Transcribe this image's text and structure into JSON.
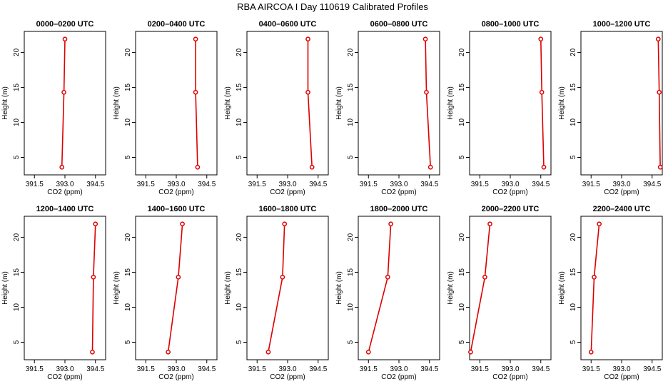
{
  "title": "RBA AIRCOA I  Day 110619  Calibrated Profiles",
  "chart_data": [
    {
      "type": "line",
      "title": "0000–0200 UTC",
      "xlabel": "CO2 (ppm)",
      "ylabel": "Height (m)",
      "xlim": [
        391.0,
        395.0
      ],
      "ylim": [
        2.5,
        23
      ],
      "xticks": [
        "391.5",
        "393.0",
        "394.5"
      ],
      "yticks": [
        "5",
        "10",
        "15",
        "20"
      ],
      "grid": false,
      "points": [
        {
          "x": 392.85,
          "y": 3.6
        },
        {
          "x": 392.95,
          "y": 14.3
        },
        {
          "x": 393.0,
          "y": 21.9
        }
      ]
    },
    {
      "type": "line",
      "title": "0200–0400 UTC",
      "xlabel": "CO2 (ppm)",
      "ylabel": "Height (m)",
      "xlim": [
        391.0,
        395.0
      ],
      "ylim": [
        2.5,
        23
      ],
      "xticks": [
        "391.5",
        "393.0",
        "394.5"
      ],
      "yticks": [
        "5",
        "10",
        "15",
        "20"
      ],
      "grid": false,
      "points": [
        {
          "x": 394.05,
          "y": 3.6
        },
        {
          "x": 393.95,
          "y": 14.3
        },
        {
          "x": 393.95,
          "y": 21.9
        }
      ]
    },
    {
      "type": "line",
      "title": "0400–0600 UTC",
      "xlabel": "CO2 (ppm)",
      "ylabel": "Height (m)",
      "xlim": [
        391.0,
        395.0
      ],
      "ylim": [
        2.5,
        23
      ],
      "xticks": [
        "391.5",
        "393.0",
        "394.5"
      ],
      "yticks": [
        "5",
        "10",
        "15",
        "20"
      ],
      "grid": false,
      "points": [
        {
          "x": 394.2,
          "y": 3.6
        },
        {
          "x": 394.0,
          "y": 14.3
        },
        {
          "x": 394.0,
          "y": 21.9
        }
      ]
    },
    {
      "type": "line",
      "title": "0600–0800 UTC",
      "xlabel": "CO2 (ppm)",
      "ylabel": "Height (m)",
      "xlim": [
        391.0,
        395.0
      ],
      "ylim": [
        2.5,
        23
      ],
      "xticks": [
        "391.5",
        "393.0",
        "394.5"
      ],
      "yticks": [
        "5",
        "10",
        "15",
        "20"
      ],
      "grid": false,
      "points": [
        {
          "x": 394.55,
          "y": 3.6
        },
        {
          "x": 394.35,
          "y": 14.3
        },
        {
          "x": 394.3,
          "y": 21.9
        }
      ]
    },
    {
      "type": "line",
      "title": "0800–1000 UTC",
      "xlabel": "CO2 (ppm)",
      "ylabel": "Height (m)",
      "xlim": [
        391.0,
        395.0
      ],
      "ylim": [
        2.5,
        23
      ],
      "xticks": [
        "391.5",
        "393.0",
        "394.5"
      ],
      "yticks": [
        "5",
        "10",
        "15",
        "20"
      ],
      "grid": false,
      "points": [
        {
          "x": 394.65,
          "y": 3.6
        },
        {
          "x": 394.55,
          "y": 14.3
        },
        {
          "x": 394.5,
          "y": 21.9
        }
      ]
    },
    {
      "type": "line",
      "title": "1000–1200 UTC",
      "xlabel": "CO2 (ppm)",
      "ylabel": "Height (m)",
      "xlim": [
        391.0,
        395.0
      ],
      "ylim": [
        2.5,
        23
      ],
      "xticks": [
        "391.5",
        "393.0",
        "394.5"
      ],
      "yticks": [
        "5",
        "10",
        "15",
        "20"
      ],
      "grid": false,
      "points": [
        {
          "x": 394.9,
          "y": 3.6
        },
        {
          "x": 394.85,
          "y": 14.3
        },
        {
          "x": 394.8,
          "y": 21.9
        }
      ]
    },
    {
      "type": "line",
      "title": "1200–1400 UTC",
      "xlabel": "CO2 (ppm)",
      "ylabel": "Height (m)",
      "xlim": [
        391.0,
        395.0
      ],
      "ylim": [
        2.5,
        23
      ],
      "xticks": [
        "391.5",
        "393.0",
        "394.5"
      ],
      "yticks": [
        "5",
        "10",
        "15",
        "20"
      ],
      "grid": false,
      "points": [
        {
          "x": 394.35,
          "y": 3.6
        },
        {
          "x": 394.4,
          "y": 14.3
        },
        {
          "x": 394.5,
          "y": 21.9
        }
      ]
    },
    {
      "type": "line",
      "title": "1400–1600 UTC",
      "xlabel": "CO2 (ppm)",
      "ylabel": "Height (m)",
      "xlim": [
        391.0,
        395.0
      ],
      "ylim": [
        2.5,
        23
      ],
      "xticks": [
        "391.5",
        "393.0",
        "394.5"
      ],
      "yticks": [
        "5",
        "10",
        "15",
        "20"
      ],
      "grid": false,
      "points": [
        {
          "x": 392.6,
          "y": 3.6
        },
        {
          "x": 393.1,
          "y": 14.3
        },
        {
          "x": 393.3,
          "y": 21.9
        }
      ]
    },
    {
      "type": "line",
      "title": "1600–1800 UTC",
      "xlabel": "CO2 (ppm)",
      "ylabel": "Height (m)",
      "xlim": [
        391.0,
        395.0
      ],
      "ylim": [
        2.5,
        23
      ],
      "xticks": [
        "391.5",
        "393.0",
        "394.5"
      ],
      "yticks": [
        "5",
        "10",
        "15",
        "20"
      ],
      "grid": false,
      "points": [
        {
          "x": 392.05,
          "y": 3.6
        },
        {
          "x": 392.75,
          "y": 14.3
        },
        {
          "x": 392.85,
          "y": 21.9
        }
      ]
    },
    {
      "type": "line",
      "title": "1800–2000 UTC",
      "xlabel": "CO2 (ppm)",
      "ylabel": "Height (m)",
      "xlim": [
        391.0,
        395.0
      ],
      "ylim": [
        2.5,
        23
      ],
      "xticks": [
        "391.5",
        "393.0",
        "394.5"
      ],
      "yticks": [
        "5",
        "10",
        "15",
        "20"
      ],
      "grid": false,
      "points": [
        {
          "x": 391.5,
          "y": 3.6
        },
        {
          "x": 392.45,
          "y": 14.3
        },
        {
          "x": 392.6,
          "y": 21.9
        }
      ]
    },
    {
      "type": "line",
      "title": "2000–2200 UTC",
      "xlabel": "CO2 (ppm)",
      "ylabel": "Height (m)",
      "xlim": [
        391.0,
        395.0
      ],
      "ylim": [
        2.5,
        23
      ],
      "xticks": [
        "391.5",
        "393.0",
        "394.5"
      ],
      "yticks": [
        "5",
        "10",
        "15",
        "20"
      ],
      "grid": false,
      "points": [
        {
          "x": 391.05,
          "y": 3.6
        },
        {
          "x": 391.75,
          "y": 14.3
        },
        {
          "x": 392.0,
          "y": 21.9
        }
      ]
    },
    {
      "type": "line",
      "title": "2200–2400 UTC",
      "xlabel": "CO2 (ppm)",
      "ylabel": "Height (m)",
      "xlim": [
        391.0,
        395.0
      ],
      "ylim": [
        2.5,
        23
      ],
      "xticks": [
        "391.5",
        "393.0",
        "394.5"
      ],
      "yticks": [
        "5",
        "10",
        "15",
        "20"
      ],
      "grid": false,
      "points": [
        {
          "x": 391.5,
          "y": 3.6
        },
        {
          "x": 391.65,
          "y": 14.3
        },
        {
          "x": 391.9,
          "y": 21.9
        }
      ]
    }
  ],
  "colors": {
    "series": "#dd0000",
    "axis": "#000000"
  }
}
